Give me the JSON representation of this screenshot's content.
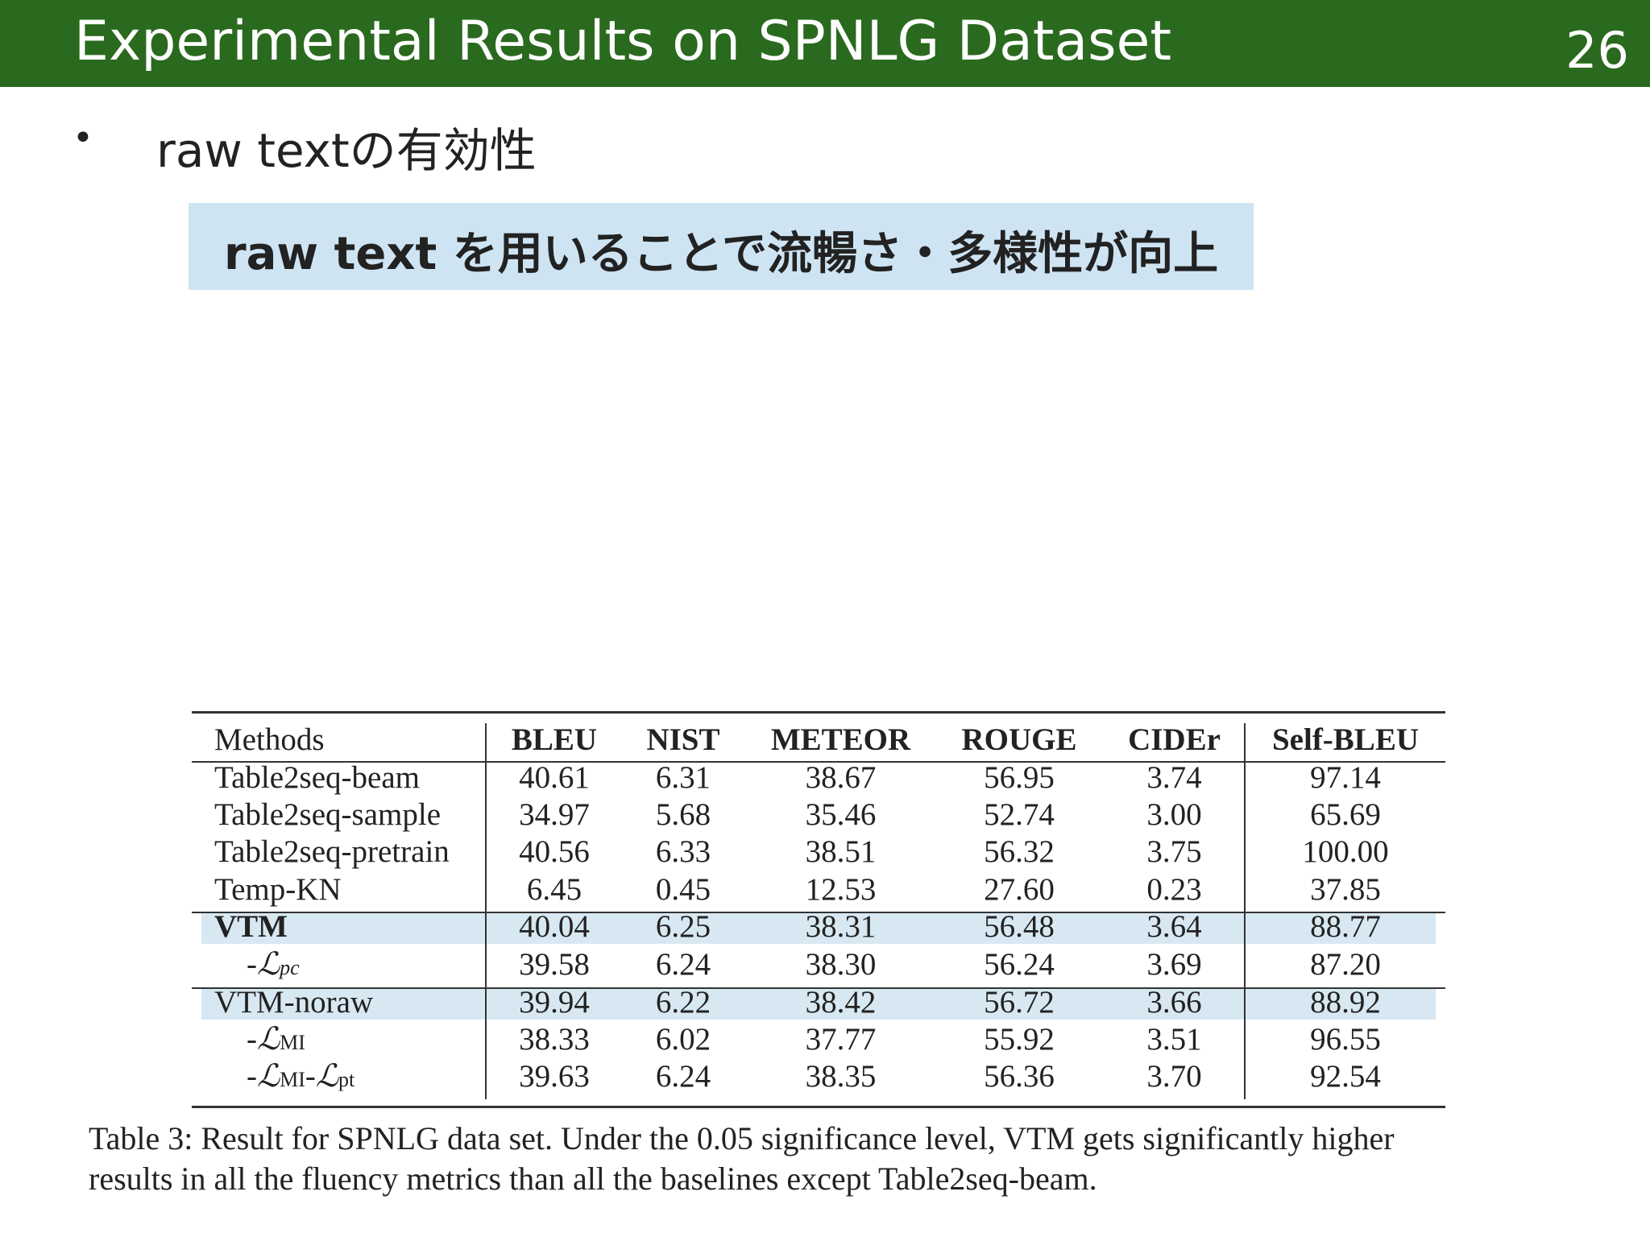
{
  "slide": {
    "title": "Experimental Results on SPNLG Dataset",
    "page_number": "26",
    "bullet": "raw textの有効性",
    "callout": "raw text を用いることで流暢さ・多様性が向上"
  },
  "table": {
    "columns": [
      "Methods",
      "BLEU",
      "NIST",
      "METEOR",
      "ROUGE",
      "CIDEr",
      "Self-BLEU"
    ],
    "rows": [
      {
        "method": "Table2seq-beam",
        "values": [
          "40.61",
          "6.31",
          "38.67",
          "56.95",
          "3.74",
          "97.14"
        ]
      },
      {
        "method": "Table2seq-sample",
        "values": [
          "34.97",
          "5.68",
          "35.46",
          "52.74",
          "3.00",
          "65.69"
        ]
      },
      {
        "method": "Table2seq-pretrain",
        "values": [
          "40.56",
          "6.33",
          "38.51",
          "56.32",
          "3.75",
          "100.00"
        ]
      },
      {
        "method": "Temp-KN",
        "values": [
          "6.45",
          "0.45",
          "12.53",
          "27.60",
          "0.23",
          "37.85"
        ]
      },
      {
        "method": "VTM",
        "values": [
          "40.04",
          "6.25",
          "38.31",
          "56.48",
          "3.64",
          "88.77"
        ]
      },
      {
        "method": "-L_pc",
        "values": [
          "39.58",
          "6.24",
          "38.30",
          "56.24",
          "3.69",
          "87.20"
        ]
      },
      {
        "method": "VTM-noraw",
        "values": [
          "39.94",
          "6.22",
          "38.42",
          "56.72",
          "3.66",
          "88.92"
        ]
      },
      {
        "method": "-L_MI",
        "values": [
          "38.33",
          "6.02",
          "37.77",
          "55.92",
          "3.51",
          "96.55"
        ]
      },
      {
        "method": "-L_MI-L_pt",
        "values": [
          "39.63",
          "6.24",
          "38.35",
          "56.36",
          "3.70",
          "92.54"
        ]
      }
    ],
    "caption_line1": "Table 3: Result for SPNLG data set. Under the 0.05 significance level, VTM gets significantly higher",
    "caption_line2": "results in all the fluency metrics than all the baselines except Table2seq-beam."
  }
}
